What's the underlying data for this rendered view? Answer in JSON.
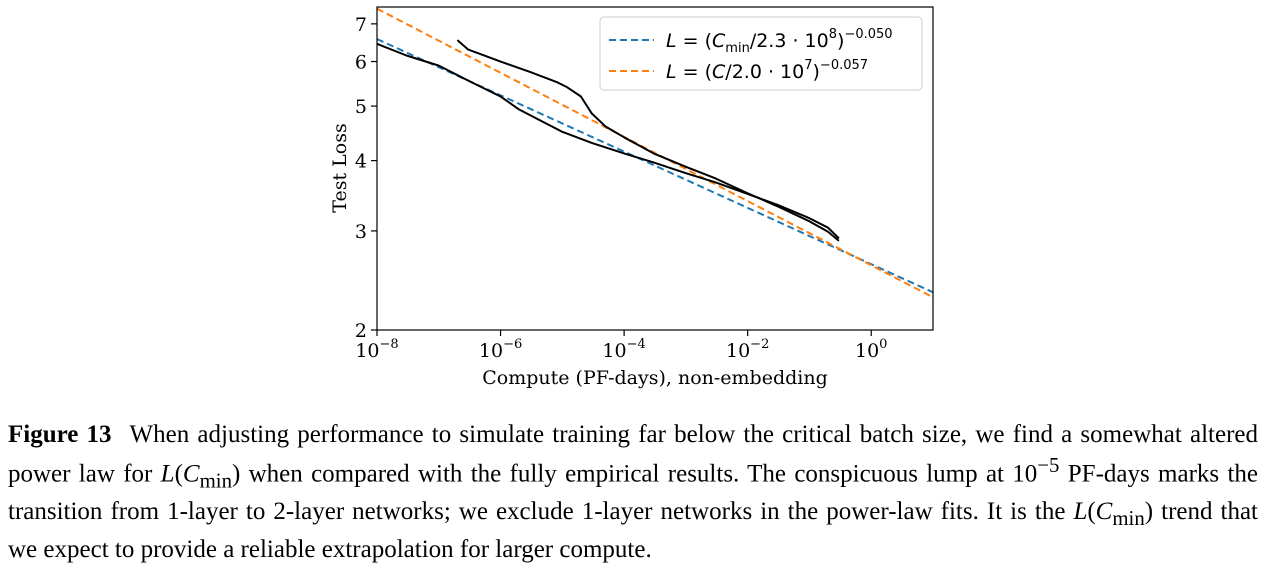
{
  "chart_data": {
    "type": "line",
    "xlabel": "Compute (PF-days), non-embedding",
    "ylabel": "Test Loss",
    "xscale": "log",
    "yscale": "log",
    "xlim": [
      1e-08,
      10
    ],
    "ylim": [
      2,
      7.5
    ],
    "x_ticks": [
      {
        "value": 1e-08,
        "base": "10",
        "exp": "−8"
      },
      {
        "value": 1e-06,
        "base": "10",
        "exp": "−6"
      },
      {
        "value": 0.0001,
        "base": "10",
        "exp": "−4"
      },
      {
        "value": 0.01,
        "base": "10",
        "exp": "−2"
      },
      {
        "value": 1,
        "base": "10",
        "exp": "0"
      }
    ],
    "y_ticks": [
      {
        "value": 2,
        "label": "2"
      },
      {
        "value": 3,
        "label": "3"
      },
      {
        "value": 4,
        "label": "4"
      },
      {
        "value": 5,
        "label": "5"
      },
      {
        "value": 6,
        "label": "6"
      },
      {
        "value": 7,
        "label": "7"
      }
    ],
    "legend_position": "top-right",
    "series": [
      {
        "name": "L = (C_min/2.3 · 10^8)^−0.050",
        "kind": "fit",
        "style": "dashed",
        "color": "#1f77b4",
        "c0": 230000000.0,
        "exponent": -0.05,
        "x_range": [
          1e-08,
          10
        ]
      },
      {
        "name": "L = (C/2.0 · 10^7)^−0.057",
        "kind": "fit",
        "style": "dashed",
        "color": "#ff7f0e",
        "c0": 20000000.0,
        "exponent": -0.057,
        "x_range": [
          1e-08,
          10
        ]
      },
      {
        "kind": "empirical",
        "style": "solid",
        "color": "#000000",
        "x": [
          1e-08,
          3e-08,
          1e-07,
          3e-07,
          1e-06,
          2e-06,
          5e-06,
          1e-05,
          3e-05,
          0.0001,
          0.0003,
          0.001,
          0.003,
          0.01,
          0.03,
          0.1,
          0.2,
          0.3
        ],
        "y": [
          6.45,
          6.15,
          5.9,
          5.55,
          5.2,
          4.93,
          4.68,
          4.5,
          4.3,
          4.12,
          3.97,
          3.8,
          3.66,
          3.49,
          3.34,
          3.16,
          3.04,
          2.91
        ]
      },
      {
        "kind": "empirical",
        "style": "solid",
        "color": "#000000",
        "x": [
          2e-07,
          3e-07,
          1e-06,
          3e-06,
          8e-06,
          1.2e-05,
          2e-05,
          3e-05,
          5e-05,
          0.0001,
          0.0003,
          0.001,
          0.003,
          0.01,
          0.03,
          0.1,
          0.2,
          0.3
        ],
        "y": [
          6.55,
          6.3,
          6.0,
          5.75,
          5.52,
          5.4,
          5.2,
          4.85,
          4.6,
          4.4,
          4.12,
          3.9,
          3.72,
          3.5,
          3.32,
          3.12,
          2.99,
          2.88
        ]
      }
    ]
  },
  "caption": {
    "label": "Figure 13",
    "part1": "When adjusting performance to simulate training far below the critical batch size, we find a somewhat altered power law for ",
    "math1_main": "L",
    "math1_paren_open": "(",
    "math1_var": "C",
    "math1_sub": "min",
    "math1_paren_close": ")",
    "part2": " when compared with the fully empirical results. The conspicuous lump at ",
    "lump_base": "10",
    "lump_exp": "−5",
    "part3": " PF-days marks the transition from 1-layer to 2-layer networks; we exclude 1-layer networks in the power-law fits. It is the ",
    "part4": " trend that we expect to provide a reliable extrapolation for larger compute."
  }
}
